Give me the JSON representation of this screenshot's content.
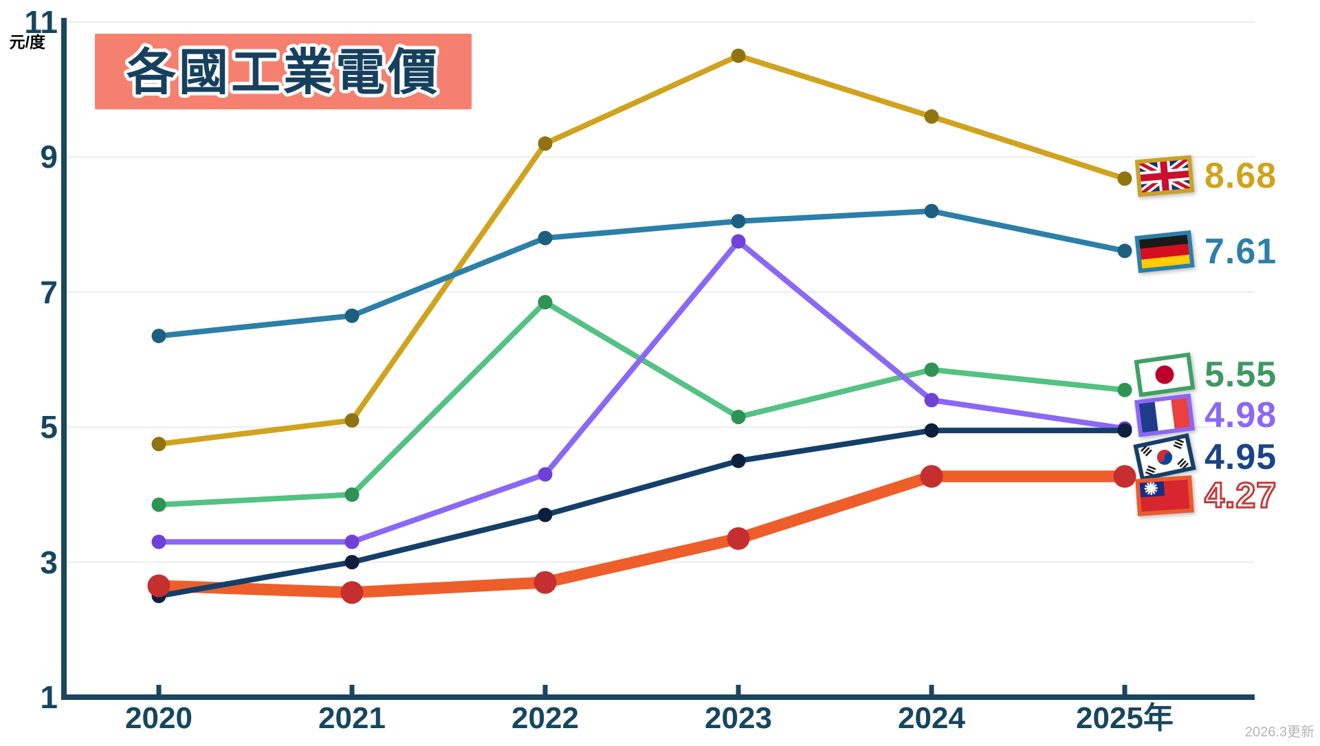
{
  "title": "各國工業電價",
  "unit_label": "元/度",
  "updated_note": "2026.3更新",
  "colors": {
    "axis": "#1A4660",
    "tick_label": "#17465F",
    "title_text": "#16405E",
    "title_background": "#F5806F",
    "gridline": "#EFEFEF"
  },
  "chart_data": {
    "type": "line",
    "title": "各國工業電價",
    "ylabel_unit": "元/度",
    "x_labels": [
      "2020",
      "2021",
      "2022",
      "2023",
      "2024",
      "2025年"
    ],
    "y_ticks": [
      "1",
      "3",
      "5",
      "7",
      "9",
      "11"
    ],
    "ylim": [
      1,
      11.4
    ],
    "grid": "horizontal",
    "legend_position": "right-of-last-point",
    "series": [
      {
        "country": "uk",
        "flag_icon": "uk-flag-icon",
        "color": "#CFA31D",
        "dot_color": "#8F7410",
        "value_color": "#CFA31D",
        "end_label": "8.68",
        "values": [
          4.75,
          5.1,
          9.2,
          10.5,
          9.6,
          8.68
        ]
      },
      {
        "country": "germany",
        "flag_icon": "germany-flag-icon",
        "color": "#2C7FA8",
        "dot_color": "#1C5F80",
        "value_color": "#2C7FA8",
        "end_label": "7.61",
        "values": [
          6.35,
          6.65,
          7.8,
          8.05,
          8.2,
          7.61
        ]
      },
      {
        "country": "japan",
        "flag_icon": "japan-flag-icon",
        "color": "#53C282",
        "dot_color": "#2E9355",
        "value_color": "#3E9862",
        "end_label": "5.55",
        "values": [
          3.85,
          4.0,
          6.85,
          5.15,
          5.85,
          5.55
        ]
      },
      {
        "country": "france",
        "flag_icon": "france-flag-icon",
        "color": "#8B67F6",
        "dot_color": "#6F41D9",
        "value_color": "#8B67F6",
        "end_label": "4.98",
        "values": [
          3.3,
          3.3,
          4.3,
          7.75,
          5.4,
          4.98
        ]
      },
      {
        "country": "korea",
        "flag_icon": "korea-flag-icon",
        "color": "#143F69",
        "dot_color": "#0D1F3C",
        "value_color": "#1A4489",
        "end_label": "4.95",
        "values": [
          2.5,
          3.0,
          3.7,
          4.5,
          4.95,
          4.95
        ]
      },
      {
        "country": "taiwan",
        "flag_icon": "taiwan-flag-icon",
        "color": "#EE5E2A",
        "dot_color": "#C52F2F",
        "value_color": "#C5393B",
        "end_label": "4.27",
        "outlined_value": true,
        "thick": true,
        "values": [
          2.65,
          2.55,
          2.7,
          3.35,
          4.27,
          4.27
        ]
      }
    ]
  }
}
